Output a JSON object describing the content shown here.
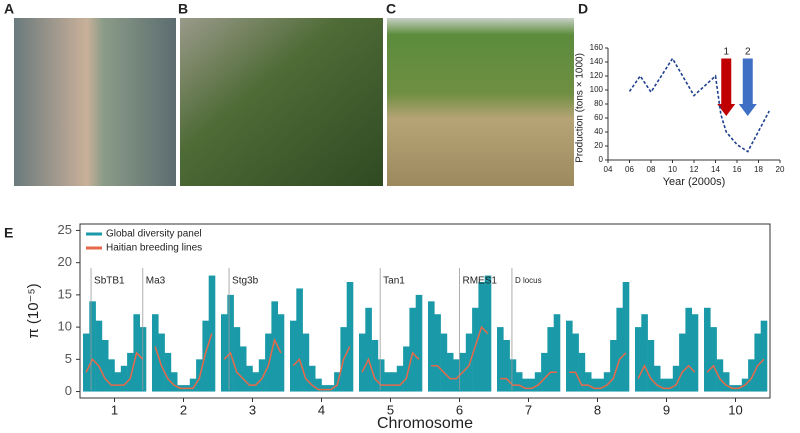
{
  "panels": {
    "a": "A",
    "b": "B",
    "c": "C",
    "d": "D",
    "e": "E"
  },
  "chart_data": [
    {
      "type": "line",
      "xlabel": "Year (2000s)",
      "ylabel": "Production (tons × 1000)",
      "x": [
        6,
        7,
        8,
        10,
        12,
        14,
        14.5,
        15,
        16,
        17,
        19
      ],
      "series": [
        {
          "name": "Production",
          "color": "#1f3f8f",
          "values": [
            98,
            120,
            97,
            145,
            92,
            120,
            65,
            40,
            22,
            12,
            70
          ]
        }
      ],
      "xlim": [
        4,
        20
      ],
      "xticks": [
        {
          "value": 4,
          "label": "04"
        },
        {
          "value": 6,
          "label": "06"
        },
        {
          "value": 8,
          "label": "08"
        },
        10,
        12,
        14,
        16,
        18,
        20
      ],
      "ylim": [
        0,
        160
      ],
      "yticks": [
        0,
        20,
        40,
        60,
        80,
        100,
        120,
        140,
        160
      ],
      "annotations": [
        {
          "text": "1",
          "x": 15,
          "color": "#c00000"
        },
        {
          "text": "2",
          "x": 17,
          "color": "#3f6fc4"
        }
      ]
    },
    {
      "type": "diversity",
      "xlabel": "Chromosome",
      "ylabel": "π (10⁻⁵)",
      "categories": [
        1,
        2,
        3,
        4,
        5,
        6,
        7,
        8,
        9,
        10
      ],
      "ylim": [
        -1,
        26
      ],
      "yticks": [
        0,
        5,
        10,
        15,
        20,
        25
      ],
      "legend": "top-left",
      "series": [
        {
          "name": "Global diversity panel",
          "color": "#1a9aa8",
          "values": [
            [
              9,
              14,
              11,
              8,
              5,
              3,
              4,
              6,
              12,
              10
            ],
            [
              12,
              9,
              6,
              3,
              1,
              1,
              2,
              5,
              11,
              18
            ],
            [
              12,
              15,
              10,
              7,
              4,
              3,
              5,
              9,
              14,
              12
            ],
            [
              11,
              16,
              9,
              4,
              2,
              1,
              1,
              3,
              10,
              17
            ],
            [
              9,
              13,
              8,
              5,
              3,
              3,
              4,
              7,
              13,
              15
            ],
            [
              14,
              12,
              9,
              6,
              5,
              6,
              9,
              13,
              17,
              18
            ],
            [
              10,
              8,
              5,
              3,
              2,
              2,
              3,
              6,
              10,
              12
            ],
            [
              11,
              9,
              6,
              3,
              2,
              2,
              3,
              8,
              13,
              17
            ],
            [
              10,
              12,
              8,
              4,
              2,
              2,
              4,
              9,
              13,
              12
            ],
            [
              13,
              10,
              5,
              3,
              1,
              1,
              2,
              5,
              9,
              11
            ]
          ]
        },
        {
          "name": "Haitian breeding lines",
          "color": "#e8694a",
          "values": [
            [
              3,
              5,
              4,
              2,
              1,
              1,
              1,
              2,
              6,
              5
            ],
            [
              7,
              4,
              2,
              1,
              0.5,
              0.5,
              0.5,
              2,
              6,
              9
            ],
            [
              5,
              6,
              3,
              2,
              1,
              1,
              2,
              4,
              8,
              6
            ],
            [
              4,
              5,
              2,
              1,
              0.3,
              0.3,
              0.3,
              1,
              5,
              7
            ],
            [
              3,
              5,
              2,
              1,
              1,
              1,
              1,
              2,
              6,
              5
            ],
            [
              4,
              4,
              3,
              2,
              2,
              3,
              4,
              7,
              10,
              9
            ],
            [
              2,
              2,
              1,
              1,
              0.5,
              0.5,
              1,
              2,
              3,
              3
            ],
            [
              3,
              3,
              1,
              1,
              0.5,
              0.5,
              1,
              2,
              5,
              6
            ],
            [
              2,
              4,
              2,
              1,
              0.5,
              0.5,
              1,
              3,
              4,
              3
            ],
            [
              3,
              4,
              2,
              1,
              0.5,
              0.5,
              1,
              2,
              4,
              5
            ]
          ]
        }
      ],
      "annotations": [
        {
          "text": "SbTB1",
          "x": 0.66
        },
        {
          "text": "Ma3",
          "x": 1.41
        },
        {
          "text": "Stg3b",
          "x": 2.66
        },
        {
          "text": "Tan1",
          "x": 4.85
        },
        {
          "text": "RMES1",
          "x": 6.0
        },
        {
          "text": "D locus",
          "x": 6.76
        }
      ]
    }
  ]
}
